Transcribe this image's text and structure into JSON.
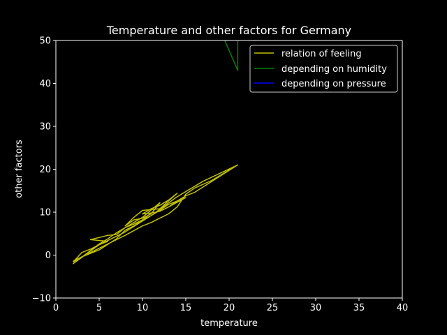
{
  "chart_data": {
    "type": "line",
    "title": "Temperature and other factors for Germany",
    "xlabel": "temperature",
    "ylabel": "other factors",
    "xlim": [
      0,
      40
    ],
    "ylim": [
      -10,
      50
    ],
    "xticks": [
      0,
      5,
      10,
      15,
      20,
      25,
      30,
      35,
      40
    ],
    "yticks": [
      -10,
      0,
      10,
      20,
      30,
      40,
      50
    ],
    "grid": false,
    "legend_position": "top-right",
    "background": "#000000",
    "axis_color": "#ffffff",
    "series": [
      {
        "name": "relation of feeling",
        "color": "#bfbf00",
        "x": [
          2,
          4,
          5,
          6,
          8,
          10,
          11,
          12,
          13,
          14,
          15,
          16,
          18,
          21,
          16,
          15,
          14,
          13,
          12,
          11,
          10,
          11,
          12,
          13,
          14,
          12,
          11,
          10,
          9,
          8,
          9,
          10,
          11,
          12,
          10,
          9,
          8,
          7,
          6,
          4,
          6,
          5,
          4,
          3,
          2,
          3,
          5,
          7,
          8,
          9,
          10,
          11,
          12,
          13,
          14,
          15,
          13,
          12,
          11,
          10,
          9,
          8,
          7,
          6,
          5,
          2,
          5,
          8,
          11,
          14,
          17,
          21
        ],
        "y": [
          -1.4,
          0.6,
          1.6,
          2.6,
          4.6,
          6.8,
          7.6,
          8.6,
          9.6,
          11.2,
          14.2,
          15.6,
          17.4,
          21,
          14.6,
          13.8,
          12.6,
          11.2,
          10.2,
          9.8,
          9.6,
          10.8,
          11.6,
          12.8,
          14.4,
          10.8,
          10.6,
          10.4,
          8.8,
          6.8,
          8.2,
          8.6,
          9.6,
          12.2,
          8.8,
          7.6,
          6.4,
          4.8,
          4.6,
          3.6,
          3.2,
          2.4,
          1.4,
          0.6,
          -1.6,
          -0.4,
          1.2,
          3.8,
          5.8,
          6.8,
          8.2,
          9.2,
          10.4,
          11.8,
          12.6,
          13.4,
          11.2,
          10.2,
          9.8,
          8.2,
          7.2,
          6.4,
          5.2,
          3.8,
          2.6,
          -2,
          2.4,
          5.4,
          9.2,
          13.6,
          17.2,
          21
        ]
      },
      {
        "name": "depending on humidity",
        "color": "#008000",
        "x": [
          19.5,
          21,
          21
        ],
        "y": [
          50,
          43,
          50
        ]
      },
      {
        "name": "depending on pressure",
        "color": "#0000ff",
        "x": [],
        "y": []
      }
    ]
  }
}
